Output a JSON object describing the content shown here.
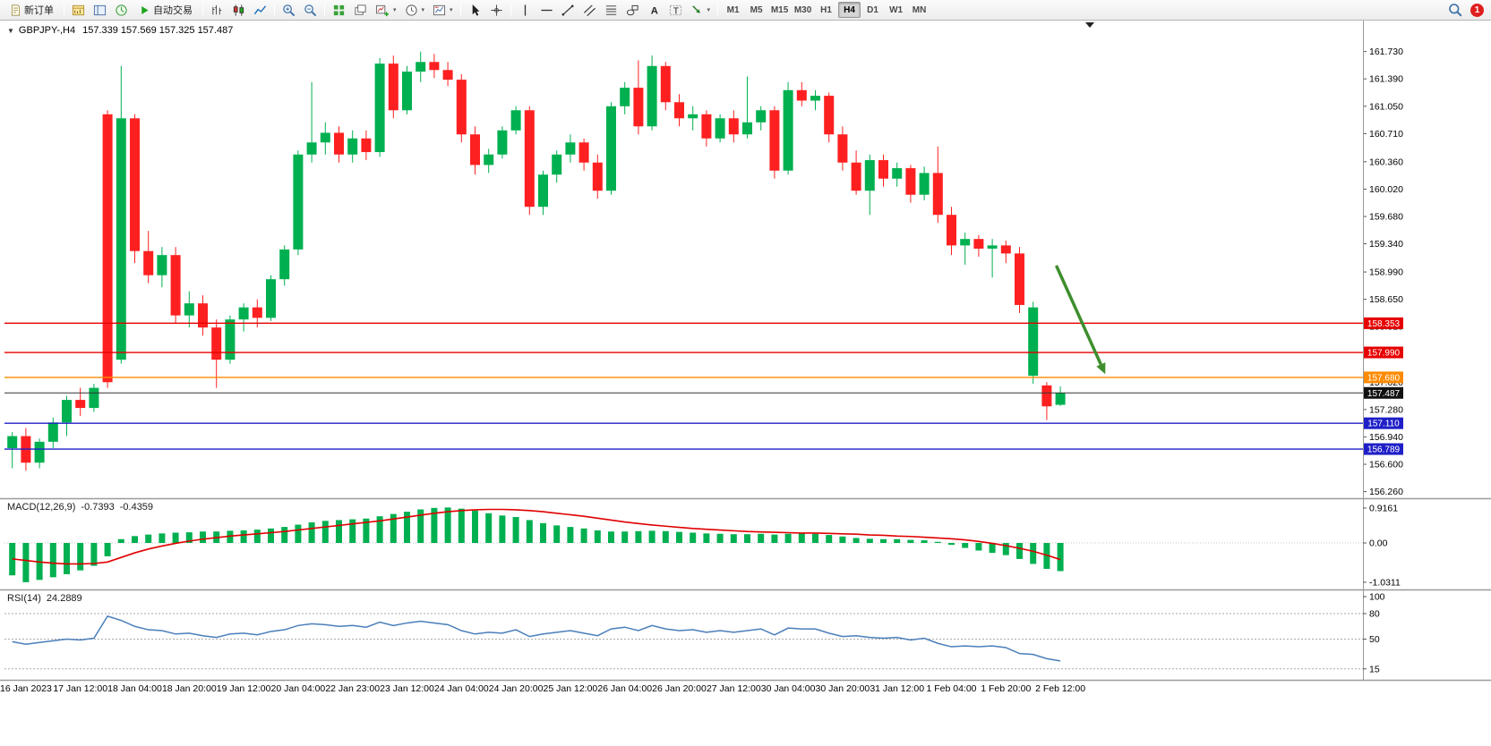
{
  "toolbar": {
    "new_order": "新订单",
    "auto_trading": "自动交易",
    "timeframes": [
      "M1",
      "M5",
      "M15",
      "M30",
      "H1",
      "H4",
      "D1",
      "W1",
      "MN"
    ],
    "active_timeframe": "H4",
    "notification_badge": "1"
  },
  "icons": {
    "collapse": "▼",
    "dropdown": "▾"
  },
  "symbol_header": {
    "symbol": "GBPJPY-,H4",
    "ohlc": "157.339 157.569 157.325 157.487"
  },
  "indicators": {
    "macd": {
      "label": "MACD(12,26,9)",
      "main": "-0.7393",
      "signal": "-0.4359",
      "axis_labels": [
        "0.9161",
        "0.00",
        "-1.0311"
      ]
    },
    "rsi": {
      "label": "RSI(14)",
      "value": "24.2889",
      "axis_labels": [
        "100",
        "80",
        "50",
        "15"
      ],
      "levels": [
        80,
        50,
        15
      ]
    }
  },
  "price_axis": [
    "161.730",
    "161.390",
    "161.050",
    "160.710",
    "160.360",
    "160.020",
    "159.680",
    "159.340",
    "158.990",
    "158.650",
    "158.310",
    "157.970",
    "157.620",
    "157.280",
    "156.940",
    "156.600",
    "156.260"
  ],
  "price_levels": [
    {
      "price": "158.353",
      "color": "#e60000"
    },
    {
      "price": "157.990",
      "color": "#e60000"
    },
    {
      "price": "157.680",
      "color": "#ff8a00"
    },
    {
      "price": "157.110",
      "color": "#1f1fc8"
    },
    {
      "price": "156.789",
      "color": "#1f1fc8"
    }
  ],
  "current_price": {
    "price": "157.487",
    "color": "#111111"
  },
  "time_axis": [
    "16 Jan 2023",
    "17 Jan 12:00",
    "18 Jan 04:00",
    "18 Jan 20:00",
    "19 Jan 12:00",
    "20 Jan 04:00",
    "22 Jan 23:00",
    "23 Jan 12:00",
    "24 Jan 04:00",
    "24 Jan 20:00",
    "25 Jan 12:00",
    "26 Jan 04:00",
    "26 Jan 20:00",
    "27 Jan 12:00",
    "30 Jan 04:00",
    "30 Jan 20:00",
    "31 Jan 12:00",
    "1 Feb 04:00",
    "1 Feb 20:00",
    "2 Feb 12:00"
  ],
  "colors": {
    "candle_up": "#00b050",
    "candle_down": "#fe2020",
    "macd_hist": "#00b050",
    "macd_signal": "#e00000",
    "rsi_line": "#4a7ebb",
    "arrow": "#3e8e2e"
  },
  "annotation": {
    "shape": "down-arrow",
    "from": {
      "index": 76.7,
      "price": 159.07
    },
    "to": {
      "index": 80.3,
      "price": 157.72
    }
  },
  "chart_data": {
    "type": "candlestick",
    "symbol": "GBPJPY",
    "timeframe": "H4",
    "candles": [
      [
        156.8,
        157.0,
        156.55,
        156.95
      ],
      [
        156.95,
        157.05,
        156.52,
        156.62
      ],
      [
        156.62,
        156.92,
        156.55,
        156.88
      ],
      [
        156.88,
        157.18,
        156.8,
        157.12
      ],
      [
        157.12,
        157.45,
        156.95,
        157.4
      ],
      [
        157.4,
        157.55,
        157.2,
        157.3
      ],
      [
        157.3,
        157.6,
        157.25,
        157.55
      ],
      [
        160.95,
        161.0,
        157.55,
        157.62
      ],
      [
        157.9,
        161.55,
        157.85,
        160.9
      ],
      [
        160.9,
        160.95,
        159.1,
        159.25
      ],
      [
        159.25,
        159.5,
        158.85,
        158.95
      ],
      [
        158.95,
        159.3,
        158.8,
        159.2
      ],
      [
        159.2,
        159.3,
        158.35,
        158.45
      ],
      [
        158.45,
        158.75,
        158.3,
        158.6
      ],
      [
        158.6,
        158.7,
        158.2,
        158.3
      ],
      [
        158.3,
        158.4,
        157.55,
        157.9
      ],
      [
        157.9,
        158.45,
        157.85,
        158.4
      ],
      [
        158.4,
        158.6,
        158.25,
        158.55
      ],
      [
        158.55,
        158.65,
        158.3,
        158.42
      ],
      [
        158.42,
        158.95,
        158.38,
        158.9
      ],
      [
        158.9,
        159.32,
        158.82,
        159.27
      ],
      [
        159.27,
        160.5,
        159.2,
        160.45
      ],
      [
        160.45,
        161.35,
        160.35,
        160.6
      ],
      [
        160.6,
        160.85,
        160.45,
        160.72
      ],
      [
        160.72,
        160.8,
        160.35,
        160.45
      ],
      [
        160.45,
        160.75,
        160.35,
        160.65
      ],
      [
        160.65,
        160.75,
        160.38,
        160.48
      ],
      [
        160.48,
        161.65,
        160.42,
        161.58
      ],
      [
        161.58,
        161.68,
        160.9,
        161.0
      ],
      [
        161.0,
        161.55,
        160.95,
        161.48
      ],
      [
        161.48,
        161.73,
        161.35,
        161.6
      ],
      [
        161.6,
        161.7,
        161.4,
        161.5
      ],
      [
        161.5,
        161.6,
        161.3,
        161.38
      ],
      [
        161.38,
        161.45,
        160.6,
        160.7
      ],
      [
        160.7,
        160.8,
        160.2,
        160.32
      ],
      [
        160.32,
        160.52,
        160.22,
        160.45
      ],
      [
        160.45,
        160.8,
        160.4,
        160.75
      ],
      [
        160.75,
        161.05,
        160.7,
        161.0
      ],
      [
        161.0,
        161.05,
        159.7,
        159.8
      ],
      [
        159.8,
        160.25,
        159.7,
        160.2
      ],
      [
        160.2,
        160.5,
        160.1,
        160.45
      ],
      [
        160.45,
        160.7,
        160.35,
        160.6
      ],
      [
        160.6,
        160.65,
        160.25,
        160.35
      ],
      [
        160.35,
        160.45,
        159.9,
        160.0
      ],
      [
        160.0,
        161.1,
        159.95,
        161.05
      ],
      [
        161.05,
        161.35,
        160.95,
        161.28
      ],
      [
        161.28,
        161.62,
        160.7,
        160.8
      ],
      [
        160.8,
        161.68,
        160.75,
        161.55
      ],
      [
        161.55,
        161.6,
        161.0,
        161.1
      ],
      [
        161.1,
        161.2,
        160.8,
        160.9
      ],
      [
        160.9,
        161.05,
        160.75,
        160.95
      ],
      [
        160.95,
        161.0,
        160.55,
        160.65
      ],
      [
        160.65,
        160.95,
        160.6,
        160.9
      ],
      [
        160.9,
        161.0,
        160.6,
        160.7
      ],
      [
        160.7,
        161.42,
        160.65,
        160.85
      ],
      [
        160.85,
        161.05,
        160.75,
        161.0
      ],
      [
        161.0,
        161.05,
        160.15,
        160.25
      ],
      [
        160.25,
        161.35,
        160.2,
        161.25
      ],
      [
        161.25,
        161.35,
        161.05,
        161.12
      ],
      [
        161.12,
        161.25,
        161.0,
        161.18
      ],
      [
        161.18,
        161.22,
        160.6,
        160.7
      ],
      [
        160.7,
        160.8,
        160.25,
        160.35
      ],
      [
        160.35,
        160.5,
        159.95,
        160.0
      ],
      [
        160.0,
        160.45,
        159.7,
        160.38
      ],
      [
        160.38,
        160.45,
        160.05,
        160.15
      ],
      [
        160.15,
        160.35,
        160.05,
        160.28
      ],
      [
        160.28,
        160.32,
        159.85,
        159.95
      ],
      [
        159.95,
        160.3,
        159.88,
        160.22
      ],
      [
        160.22,
        160.55,
        159.6,
        159.7
      ],
      [
        159.7,
        159.8,
        159.2,
        159.32
      ],
      [
        159.32,
        159.48,
        159.08,
        159.4
      ],
      [
        159.4,
        159.45,
        159.18,
        159.28
      ],
      [
        159.28,
        159.4,
        158.92,
        159.32
      ],
      [
        159.32,
        159.38,
        159.1,
        159.22
      ],
      [
        159.22,
        159.3,
        158.48,
        158.58
      ],
      [
        157.7,
        158.62,
        157.6,
        158.55
      ],
      [
        157.58,
        157.62,
        157.15,
        157.32
      ],
      [
        157.339,
        157.569,
        157.325,
        157.487
      ]
    ],
    "macd_histogram": [
      -0.85,
      -1.03,
      -0.97,
      -0.9,
      -0.82,
      -0.72,
      -0.6,
      -0.35,
      0.1,
      0.18,
      0.22,
      0.25,
      0.27,
      0.28,
      0.3,
      0.3,
      0.32,
      0.33,
      0.35,
      0.38,
      0.42,
      0.48,
      0.54,
      0.58,
      0.6,
      0.62,
      0.64,
      0.7,
      0.76,
      0.82,
      0.88,
      0.92,
      0.93,
      0.9,
      0.85,
      0.78,
      0.72,
      0.68,
      0.6,
      0.52,
      0.46,
      0.42,
      0.38,
      0.33,
      0.3,
      0.3,
      0.31,
      0.32,
      0.31,
      0.29,
      0.27,
      0.25,
      0.24,
      0.23,
      0.23,
      0.24,
      0.22,
      0.24,
      0.25,
      0.24,
      0.21,
      0.17,
      0.13,
      0.11,
      0.1,
      0.1,
      0.08,
      0.07,
      0.03,
      -0.05,
      -0.13,
      -0.2,
      -0.26,
      -0.32,
      -0.42,
      -0.55,
      -0.68,
      -0.7393
    ],
    "macd_signal": [
      -0.42,
      -0.46,
      -0.5,
      -0.53,
      -0.55,
      -0.55,
      -0.54,
      -0.5,
      -0.38,
      -0.26,
      -0.16,
      -0.08,
      -0.01,
      0.05,
      0.1,
      0.14,
      0.18,
      0.21,
      0.24,
      0.27,
      0.3,
      0.34,
      0.38,
      0.42,
      0.46,
      0.5,
      0.54,
      0.58,
      0.63,
      0.68,
      0.73,
      0.78,
      0.82,
      0.85,
      0.87,
      0.88,
      0.88,
      0.87,
      0.85,
      0.82,
      0.78,
      0.74,
      0.7,
      0.65,
      0.6,
      0.55,
      0.51,
      0.47,
      0.44,
      0.41,
      0.38,
      0.36,
      0.34,
      0.32,
      0.3,
      0.29,
      0.28,
      0.27,
      0.26,
      0.26,
      0.25,
      0.24,
      0.23,
      0.21,
      0.2,
      0.18,
      0.17,
      0.15,
      0.13,
      0.11,
      0.08,
      0.04,
      -0.01,
      -0.07,
      -0.14,
      -0.22,
      -0.32,
      -0.4359
    ],
    "rsi": [
      47,
      44,
      46,
      48,
      50,
      49,
      51,
      77,
      72,
      65,
      61,
      60,
      56,
      57,
      54,
      52,
      56,
      57,
      55,
      59,
      61,
      66,
      68,
      67,
      65,
      66,
      64,
      70,
      66,
      69,
      71,
      69,
      67,
      60,
      56,
      58,
      57,
      61,
      53,
      56,
      58,
      60,
      57,
      54,
      62,
      64,
      60,
      66,
      62,
      60,
      61,
      58,
      60,
      58,
      60,
      62,
      55,
      63,
      62,
      62,
      57,
      53,
      54,
      52,
      51,
      52,
      49,
      51,
      45,
      41,
      42,
      41,
      42,
      40,
      33,
      32,
      27,
      24.2889
    ]
  }
}
